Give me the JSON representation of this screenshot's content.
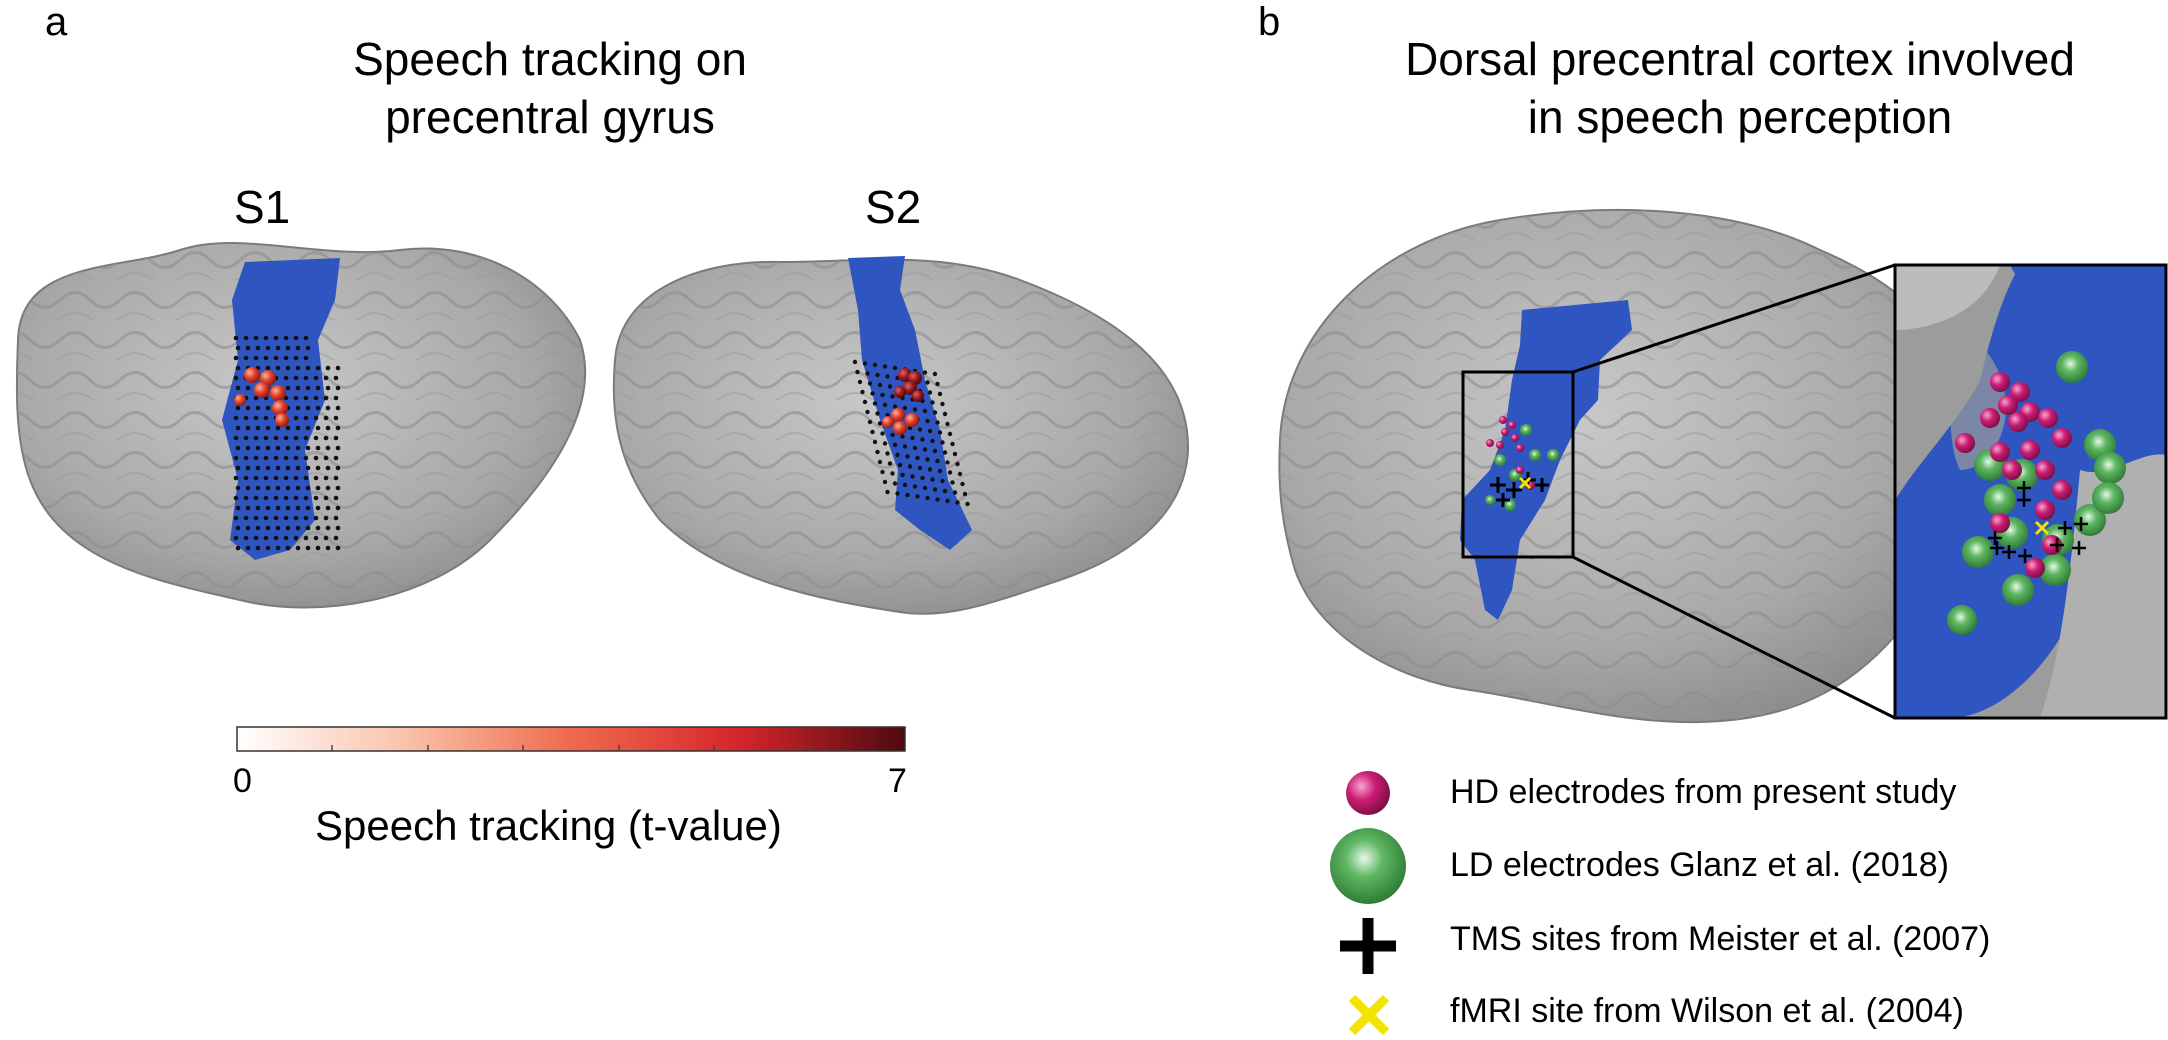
{
  "panel_a": {
    "letter": "a",
    "title_line1": "Speech tracking on",
    "title_line2": "precentral gyrus",
    "subjects": [
      "S1",
      "S2"
    ],
    "colorbar": {
      "min_label": "0",
      "max_label": "7",
      "label": "Speech tracking (t-value)",
      "colors": [
        "#ffffff",
        "#f7b79c",
        "#ef6a4c",
        "#d6262c",
        "#5a0a10"
      ]
    }
  },
  "panel_b": {
    "letter": "b",
    "title_line1": "Dorsal precentral cortex involved",
    "title_line2": "in speech perception",
    "legend": [
      {
        "label": "HD electrodes from present study",
        "icon": "magenta-sphere-icon",
        "color": "#c0186a"
      },
      {
        "label": "LD electrodes Glanz et al. (2018)",
        "icon": "green-sphere-icon",
        "color": "#3a9a44"
      },
      {
        "label": "TMS sites from Meister et al. (2007)",
        "icon": "black-cross-icon",
        "color": "#000000"
      },
      {
        "label": "fMRI site from Wilson et al. (2004)",
        "icon": "yellow-x-icon",
        "color": "#f2e400"
      }
    ]
  },
  "colors": {
    "brain": "#b4b4b4",
    "precentral_highlight": "#2f56c0"
  }
}
